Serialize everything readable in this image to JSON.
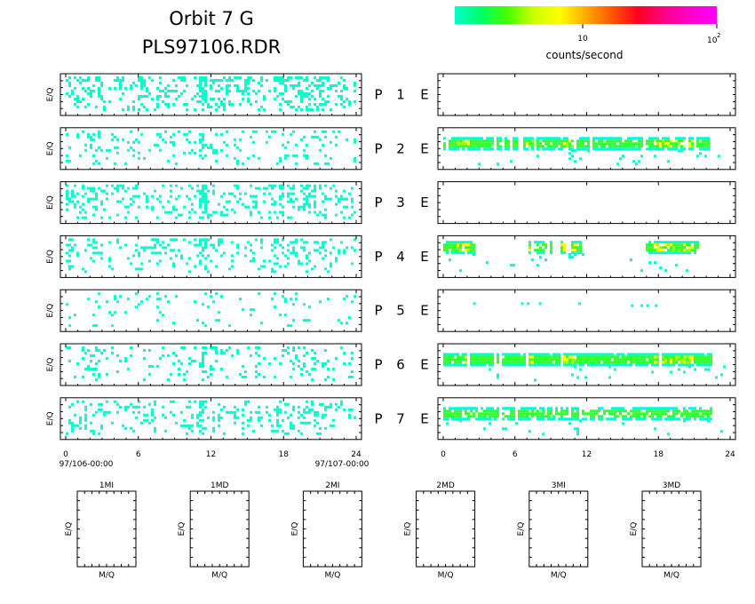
{
  "header": {
    "title_line1": "Orbit 7 G",
    "title_line2": "PLS97106.RDR"
  },
  "colorbar": {
    "label": "counts/second",
    "tick_10": "10",
    "tick_100_base": "10",
    "tick_100_exp": "2",
    "stops": [
      "#00ffcc",
      "#00ff66",
      "#44ff00",
      "#ccff00",
      "#ffff00",
      "#ffaa00",
      "#ff5500",
      "#ff0022",
      "#ff0088",
      "#ff00cc",
      "#ff00ff"
    ]
  },
  "chart_data": {
    "type": "heatmap",
    "rows": [
      {
        "index": "1",
        "left_label": "P",
        "right_label": "E",
        "ylabel": "E/Q",
        "left_density": 0.3,
        "right": "empty"
      },
      {
        "index": "2",
        "left_label": "P",
        "right_label": "E",
        "ylabel": "E/Q",
        "left_density": 0.14,
        "right": "band"
      },
      {
        "index": "3",
        "left_label": "P",
        "right_label": "E",
        "ylabel": "E/Q",
        "left_density": 0.24,
        "right": "empty"
      },
      {
        "index": "4",
        "left_label": "P",
        "right_label": "E",
        "ylabel": "E/Q",
        "left_density": 0.18,
        "right": "band_sparse"
      },
      {
        "index": "5",
        "left_label": "P",
        "right_label": "E",
        "ylabel": "E/Q",
        "left_density": 0.05,
        "right": "sparse"
      },
      {
        "index": "6",
        "left_label": "P",
        "right_label": "E",
        "ylabel": "E/Q",
        "left_density": 0.15,
        "right": "band_strong"
      },
      {
        "index": "7",
        "left_label": "P",
        "right_label": "E",
        "ylabel": "E/Q",
        "left_density": 0.2,
        "right": "band_weak"
      }
    ],
    "x_ticks": [
      "0",
      "6",
      "12",
      "18",
      "24"
    ],
    "xlim": [
      0,
      24
    ],
    "x_start_label": "97/106-00:00",
    "x_end_label": "97/107-00:00",
    "mass_panels": [
      {
        "title": "1MI",
        "xlabel": "M/Q",
        "ylabel": "E/Q"
      },
      {
        "title": "1MD",
        "xlabel": "M/Q",
        "ylabel": "E/Q"
      },
      {
        "title": "2MI",
        "xlabel": "M/Q",
        "ylabel": "E/Q"
      },
      {
        "title": "2MD",
        "xlabel": "M/Q",
        "ylabel": "E/Q"
      },
      {
        "title": "3MI",
        "xlabel": "M/Q",
        "ylabel": "E/Q"
      },
      {
        "title": "3MD",
        "xlabel": "M/Q",
        "ylabel": "E/Q"
      }
    ]
  }
}
